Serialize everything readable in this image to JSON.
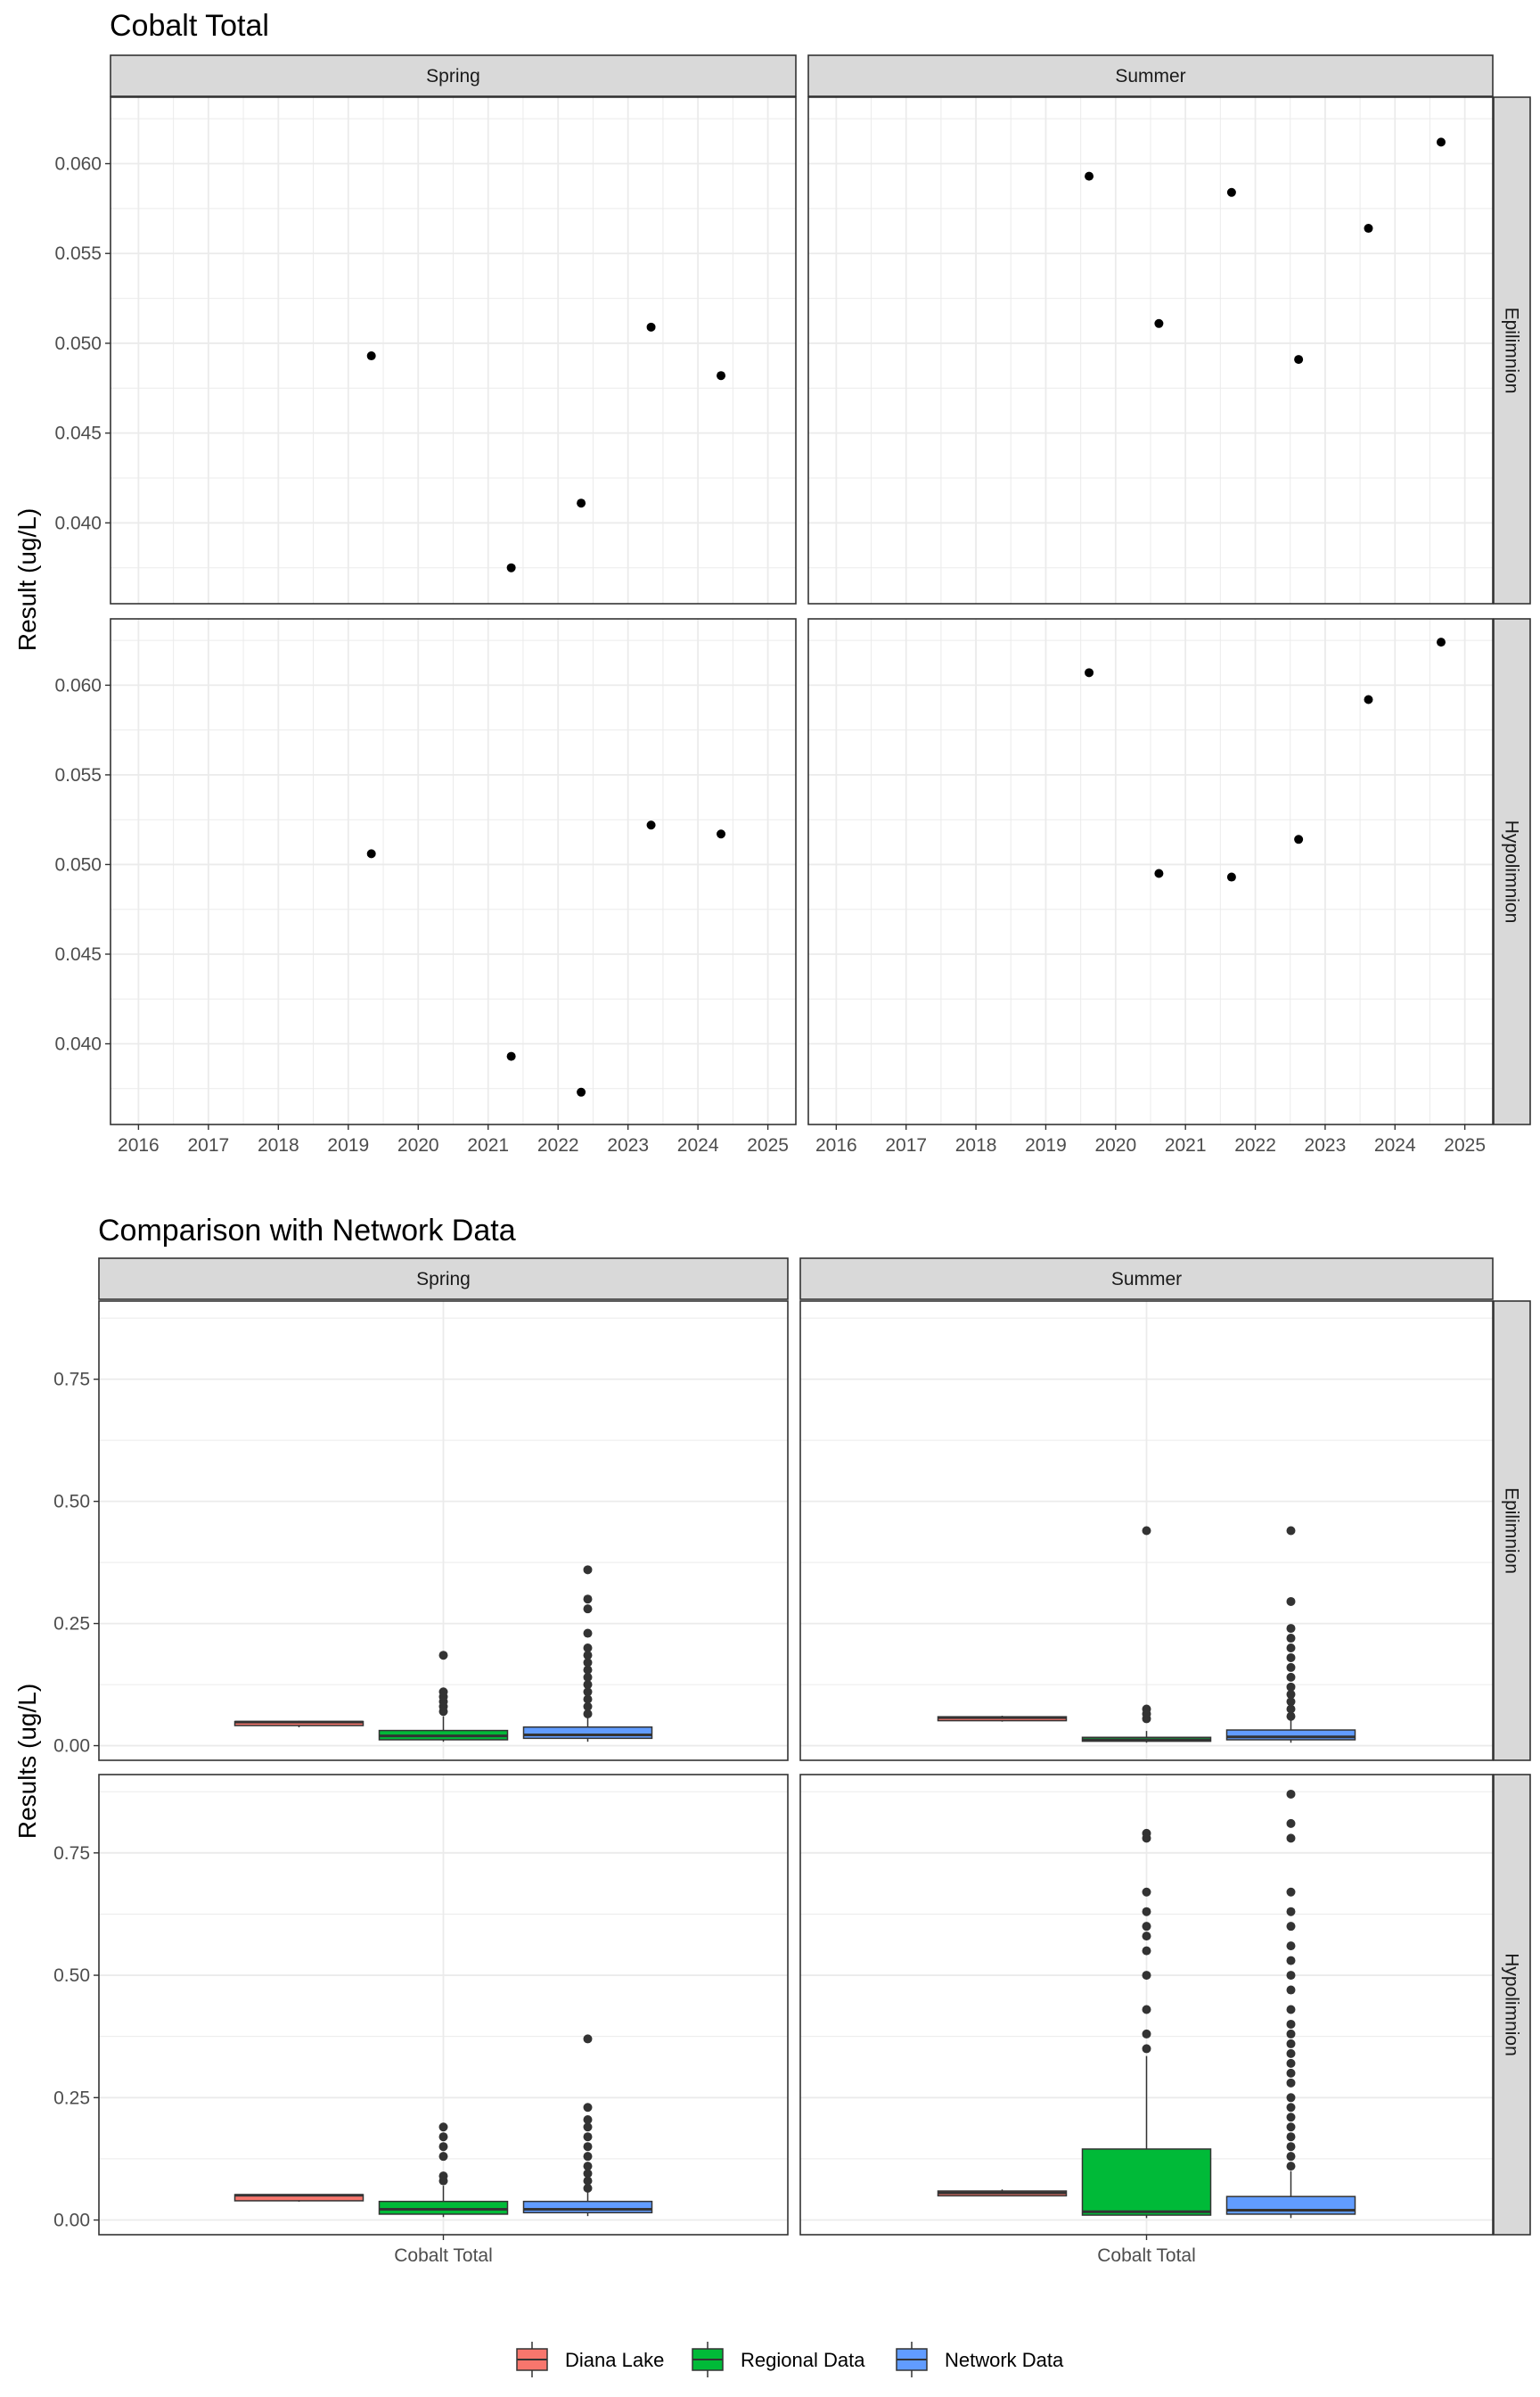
{
  "colors": {
    "diana_lake": "#F8766D",
    "regional_data": "#00BA38",
    "network_data": "#619CFF",
    "strip_fill": "#D9D9D9",
    "grid": "#EBEBEB",
    "point": "#000000",
    "outlier": "#333333"
  },
  "chart_data": [
    {
      "type": "scatter",
      "title": "Cobalt Total",
      "ylabel": "Result (ug/L)",
      "xlabel": "",
      "x_ticks": [
        "2016",
        "2017",
        "2018",
        "2019",
        "2020",
        "2021",
        "2022",
        "2023",
        "2024",
        "2025"
      ],
      "xlim": [
        2015.6,
        2025.4
      ],
      "ylim": [
        0.0355,
        0.0637
      ],
      "y_ticks": [
        "0.040",
        "0.045",
        "0.050",
        "0.055",
        "0.060"
      ],
      "y_tick_values": [
        0.04,
        0.045,
        0.05,
        0.055,
        0.06
      ],
      "grid": true,
      "facet_columns": [
        "Spring",
        "Summer"
      ],
      "facet_rows": [
        "Epilimnion",
        "Hypolimnion"
      ],
      "panels": [
        {
          "season": "Spring",
          "layer": "Epilimnion",
          "points": [
            [
              2019.33,
              0.0493
            ],
            [
              2021.33,
              0.0375
            ],
            [
              2022.33,
              0.0411
            ],
            [
              2023.33,
              0.0509
            ],
            [
              2024.33,
              0.0482
            ]
          ]
        },
        {
          "season": "Summer",
          "layer": "Epilimnion",
          "points": [
            [
              2019.62,
              0.0593
            ],
            [
              2020.62,
              0.0511
            ],
            [
              2021.66,
              0.0584
            ],
            [
              2022.62,
              0.0491
            ],
            [
              2023.62,
              0.0564
            ],
            [
              2024.66,
              0.0612
            ]
          ]
        },
        {
          "season": "Spring",
          "layer": "Hypolimnion",
          "points": [
            [
              2019.33,
              0.0506
            ],
            [
              2021.33,
              0.0393
            ],
            [
              2022.33,
              0.0373
            ],
            [
              2023.33,
              0.0522
            ],
            [
              2024.33,
              0.0517
            ]
          ]
        },
        {
          "season": "Summer",
          "layer": "Hypolimnion",
          "points": [
            [
              2019.62,
              0.0607
            ],
            [
              2020.62,
              0.0495
            ],
            [
              2021.66,
              0.0493
            ],
            [
              2022.62,
              0.0514
            ],
            [
              2023.62,
              0.0592
            ],
            [
              2024.66,
              0.0624
            ]
          ]
        }
      ]
    },
    {
      "type": "box",
      "title": "Comparison with Network Data",
      "ylabel": "Results (ug/L)",
      "xlabel": "",
      "x_category": "Cobalt Total",
      "ylim": [
        -0.03,
        0.91
      ],
      "y_ticks": [
        "0.00",
        "0.25",
        "0.50",
        "0.75"
      ],
      "y_tick_values": [
        0,
        0.25,
        0.5,
        0.75
      ],
      "grid": true,
      "facet_columns": [
        "Spring",
        "Summer"
      ],
      "facet_rows": [
        "Epilimnion",
        "Hypolimnion"
      ],
      "legend": {
        "position": "bottom",
        "entries": [
          "Diana Lake",
          "Regional Data",
          "Network Data"
        ]
      },
      "panels": [
        {
          "season": "Spring",
          "layer": "Epilimnion",
          "boxes": [
            {
              "group": "Diana Lake",
              "min": 0.0375,
              "q1": 0.0411,
              "median": 0.0482,
              "q3": 0.0493,
              "max": 0.0509,
              "outliers": []
            },
            {
              "group": "Regional Data",
              "min": 0.008,
              "q1": 0.012,
              "median": 0.02,
              "q3": 0.031,
              "max": 0.06,
              "outliers": [
                0.07,
                0.08,
                0.09,
                0.1,
                0.11,
                0.185
              ]
            },
            {
              "group": "Network Data",
              "min": 0.008,
              "q1": 0.015,
              "median": 0.022,
              "q3": 0.038,
              "max": 0.06,
              "outliers": [
                0.065,
                0.08,
                0.095,
                0.11,
                0.125,
                0.14,
                0.155,
                0.17,
                0.185,
                0.2,
                0.23,
                0.28,
                0.3,
                0.36
              ]
            }
          ]
        },
        {
          "season": "Summer",
          "layer": "Epilimnion",
          "boxes": [
            {
              "group": "Diana Lake",
              "min": 0.0491,
              "q1": 0.0511,
              "median": 0.0574,
              "q3": 0.0591,
              "max": 0.0612,
              "outliers": []
            },
            {
              "group": "Regional Data",
              "min": 0.006,
              "q1": 0.009,
              "median": 0.012,
              "q3": 0.017,
              "max": 0.03,
              "outliers": [
                0.055,
                0.065,
                0.075,
                0.44
              ]
            },
            {
              "group": "Network Data",
              "min": 0.006,
              "q1": 0.012,
              "median": 0.018,
              "q3": 0.032,
              "max": 0.055,
              "outliers": [
                0.06,
                0.075,
                0.09,
                0.105,
                0.12,
                0.14,
                0.16,
                0.18,
                0.2,
                0.22,
                0.24,
                0.295,
                0.44
              ]
            }
          ]
        },
        {
          "season": "Spring",
          "layer": "Hypolimnion",
          "boxes": [
            {
              "group": "Diana Lake",
              "min": 0.0373,
              "q1": 0.0393,
              "median": 0.0506,
              "q3": 0.0517,
              "max": 0.0522,
              "outliers": []
            },
            {
              "group": "Regional Data",
              "min": 0.006,
              "q1": 0.012,
              "median": 0.022,
              "q3": 0.038,
              "max": 0.07,
              "outliers": [
                0.08,
                0.09,
                0.13,
                0.15,
                0.17,
                0.19
              ]
            },
            {
              "group": "Network Data",
              "min": 0.008,
              "q1": 0.015,
              "median": 0.022,
              "q3": 0.038,
              "max": 0.06,
              "outliers": [
                0.065,
                0.08,
                0.095,
                0.11,
                0.13,
                0.15,
                0.17,
                0.19,
                0.205,
                0.23,
                0.37
              ]
            }
          ]
        },
        {
          "season": "Summer",
          "layer": "Hypolimnion",
          "boxes": [
            {
              "group": "Diana Lake",
              "min": 0.0493,
              "q1": 0.0495,
              "median": 0.0553,
              "q3": 0.0592,
              "max": 0.0624,
              "outliers": []
            },
            {
              "group": "Regional Data",
              "min": 0.004,
              "q1": 0.01,
              "median": 0.017,
              "q3": 0.145,
              "max": 0.335,
              "outliers": [
                0.35,
                0.38,
                0.43,
                0.5,
                0.55,
                0.58,
                0.6,
                0.63,
                0.67,
                0.78,
                0.79
              ]
            },
            {
              "group": "Network Data",
              "min": 0.004,
              "q1": 0.012,
              "median": 0.02,
              "q3": 0.048,
              "max": 0.1,
              "outliers": [
                0.11,
                0.13,
                0.15,
                0.17,
                0.19,
                0.21,
                0.23,
                0.25,
                0.28,
                0.3,
                0.32,
                0.34,
                0.36,
                0.38,
                0.4,
                0.43,
                0.47,
                0.5,
                0.53,
                0.56,
                0.6,
                0.63,
                0.67,
                0.78,
                0.81,
                0.87
              ]
            }
          ]
        }
      ]
    }
  ]
}
